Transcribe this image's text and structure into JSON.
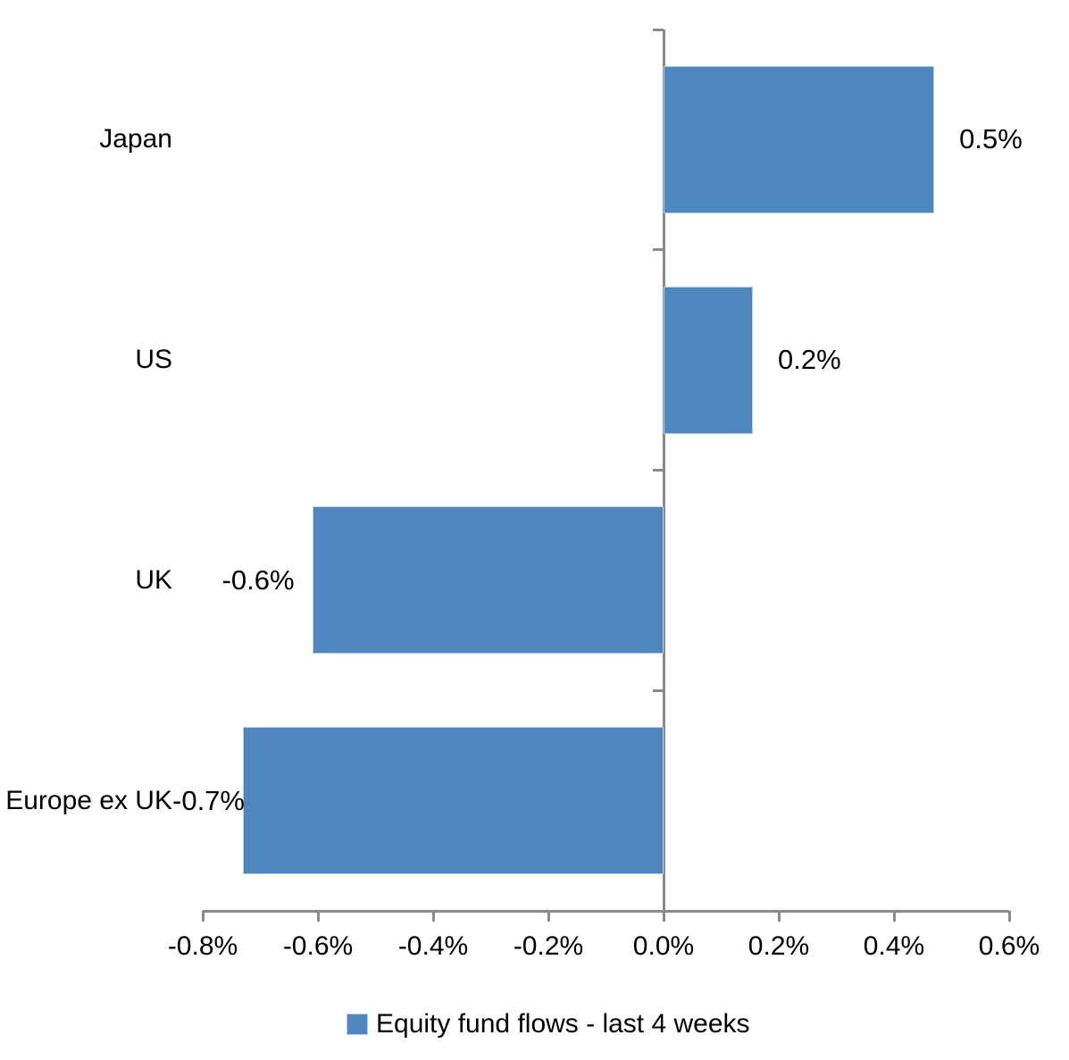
{
  "chart_data": {
    "type": "bar",
    "orientation": "horizontal",
    "title": "",
    "categories": [
      "Japan",
      "US",
      "UK",
      "Europe ex UK"
    ],
    "series": [
      {
        "name": "Equity fund flows - last 4 weeks",
        "values": [
          0.47,
          0.155,
          -0.61,
          -0.73
        ],
        "data_labels": [
          "0.5%",
          "0.2%",
          "-0.6%",
          "-0.7%"
        ]
      }
    ],
    "xlabel": "",
    "ylabel": "",
    "xlim": [
      -0.8,
      0.6
    ],
    "x_tick_values": [
      -0.8,
      -0.6,
      -0.4,
      -0.2,
      0.0,
      0.2,
      0.4,
      0.6
    ],
    "x_tick_labels": [
      "-0.8%",
      "-0.6%",
      "-0.4%",
      "-0.2%",
      "0.0%",
      "0.2%",
      "0.4%",
      "0.6%"
    ],
    "grid": false,
    "legend_position": "bottom",
    "colors": {
      "bar_fill": "#4E86BD",
      "bar_border": "#B9CDE5",
      "axis": "#8A8A8A",
      "text": "#000000"
    }
  },
  "legend": {
    "label": "Equity fund flows - last 4 weeks"
  }
}
